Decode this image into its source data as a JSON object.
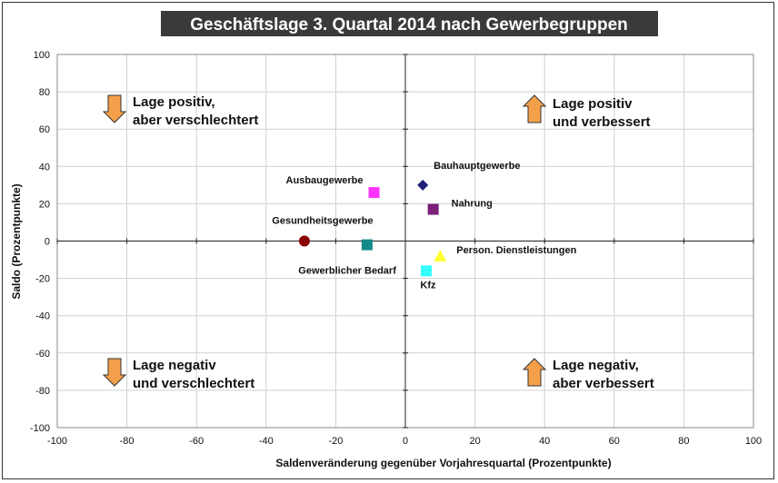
{
  "chart_data": {
    "type": "scatter",
    "title": "Geschäftslage 3. Quartal 2014 nach Gewerbegruppen",
    "xlabel": "Saldenveränderung gegenüber Vorjahresquartal (Prozentpunkte)",
    "ylabel": "Saldo (Prozentpunkte)",
    "xlim": [
      -100,
      100
    ],
    "ylim": [
      -100,
      100
    ],
    "x_ticks": [
      "-100",
      "-80",
      "-60",
      "-40",
      "-20",
      "0",
      "20",
      "40",
      "60",
      "80",
      "100"
    ],
    "y_ticks": [
      "100",
      "80",
      "60",
      "40",
      "20",
      "0",
      "-20",
      "-40",
      "-60",
      "-80",
      "-100"
    ],
    "grid": true,
    "points": [
      {
        "label": "Bauhauptgewerbe",
        "x": 5,
        "y": 30,
        "marker": "diamond",
        "color": "#1f1f7a"
      },
      {
        "label": "Ausbaugewerbe",
        "x": -9,
        "y": 26,
        "marker": "square",
        "color": "#ff33ff"
      },
      {
        "label": "Nahrung",
        "x": 8,
        "y": 17,
        "marker": "square",
        "color": "#7a1f7a"
      },
      {
        "label": "Gesundheitsgewerbe",
        "x": -29,
        "y": 0,
        "marker": "circle",
        "color": "#8b0000"
      },
      {
        "label": "Gewerblicher Bedarf",
        "x": -11,
        "y": -2,
        "marker": "square",
        "color": "#138a8a"
      },
      {
        "label": "Person. Dienstleistungen",
        "x": 10,
        "y": -8,
        "marker": "triangle",
        "color": "#ffff33"
      },
      {
        "label": "Kfz",
        "x": 6,
        "y": -16,
        "marker": "square",
        "color": "#33ffff"
      }
    ],
    "quadrant_labels": [
      {
        "lines": [
          "Lage positiv,",
          "aber verschlechtert"
        ],
        "arrow": "down"
      },
      {
        "lines": [
          "Lage positiv",
          "und verbessert"
        ],
        "arrow": "up"
      },
      {
        "lines": [
          "Lage negativ",
          "und verschlechtert"
        ],
        "arrow": "down"
      },
      {
        "lines": [
          "Lage negativ,",
          "aber verbessert"
        ],
        "arrow": "up"
      }
    ],
    "colors": {
      "arrow_fill": "#f4a04a",
      "title_bg": "#3a3a3a",
      "grid": "#d0d0d0"
    }
  }
}
